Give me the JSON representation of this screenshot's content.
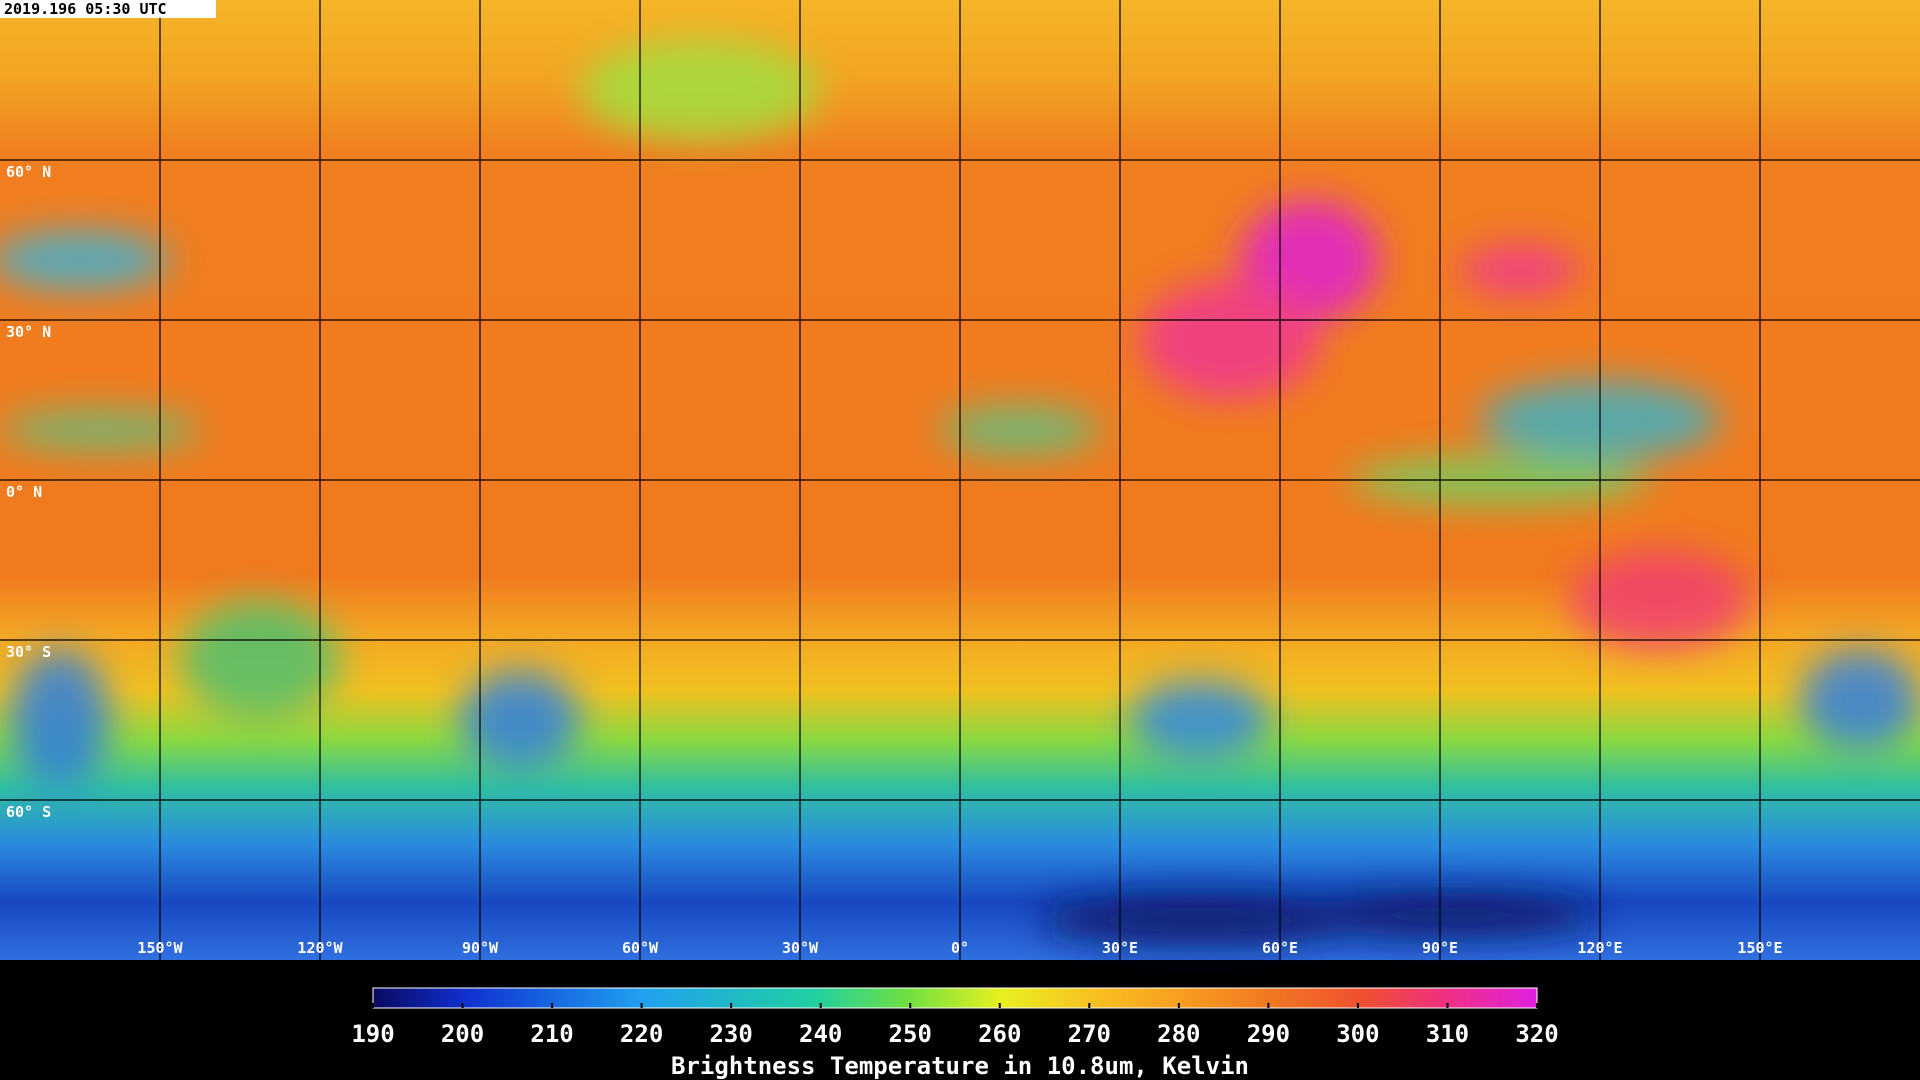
{
  "timestamp": "2019.196 05:30 UTC",
  "map": {
    "lon_range": [
      -180,
      180
    ],
    "lat_range": [
      90,
      -90
    ],
    "latitudes": [
      {
        "value": 60,
        "label": "60° N"
      },
      {
        "value": 30,
        "label": "30° N"
      },
      {
        "value": 0,
        "label": "0° N"
      },
      {
        "value": -30,
        "label": "30° S"
      },
      {
        "value": -60,
        "label": "60° S"
      }
    ],
    "longitudes": [
      {
        "value": -150,
        "label": "150°W"
      },
      {
        "value": -120,
        "label": "120°W"
      },
      {
        "value": -90,
        "label": "90°W"
      },
      {
        "value": -60,
        "label": "60°W"
      },
      {
        "value": -30,
        "label": "30°W"
      },
      {
        "value": 0,
        "label": "0°"
      },
      {
        "value": 30,
        "label": "30°E"
      },
      {
        "value": 60,
        "label": "60°E"
      },
      {
        "value": 90,
        "label": "90°E"
      },
      {
        "value": 120,
        "label": "120°E"
      },
      {
        "value": 150,
        "label": "150°E"
      }
    ]
  },
  "colorbar": {
    "lim": [
      190,
      320
    ],
    "ticks": [
      190,
      200,
      210,
      220,
      230,
      240,
      250,
      260,
      270,
      280,
      290,
      300,
      310,
      320
    ],
    "label": "Brightness Temperature in 10.8um, Kelvin"
  }
}
